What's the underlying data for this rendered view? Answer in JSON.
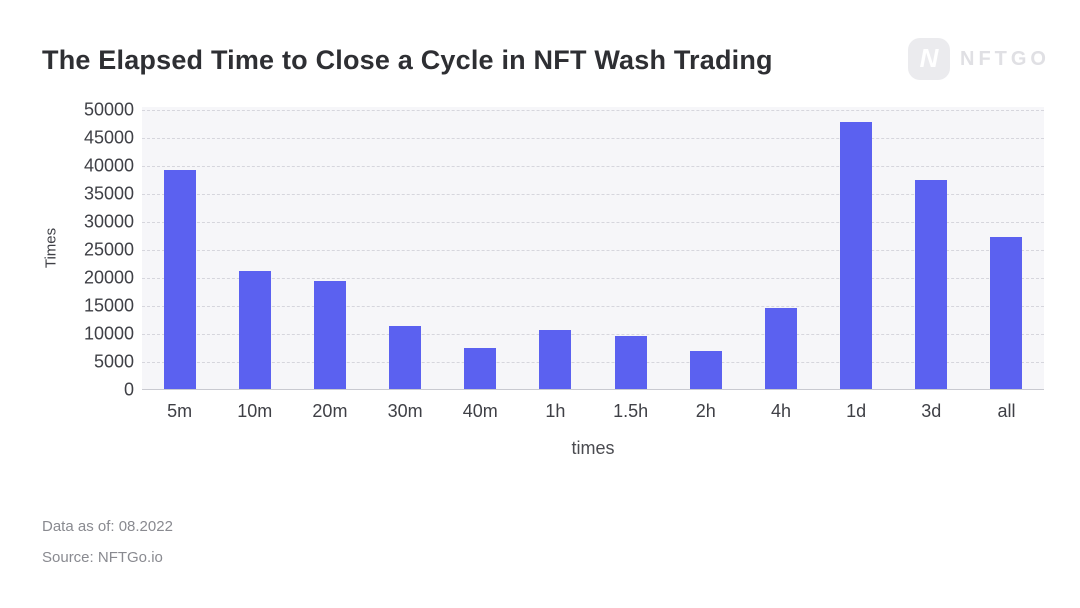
{
  "header": {
    "title": "The Elapsed Time to Close a Cycle in NFT Wash Trading",
    "logo": {
      "mark": "N",
      "text": "NFTGO"
    }
  },
  "chart_data": {
    "type": "bar",
    "title": "The Elapsed Time to Close a Cycle in NFT Wash Trading",
    "categories": [
      "5m",
      "10m",
      "20m",
      "30m",
      "40m",
      "1h",
      "1.5h",
      "2h",
      "4h",
      "1d",
      "3d",
      "all"
    ],
    "values": [
      39100,
      21000,
      19300,
      11300,
      7400,
      10500,
      9400,
      6700,
      14400,
      47700,
      37300,
      27200
    ],
    "xlabel": "times",
    "ylabel": "Times",
    "ylim": [
      0,
      50000
    ],
    "yticks": [
      "50000",
      "45000",
      "40000",
      "35000",
      "30000",
      "25000",
      "20000",
      "15000",
      "10000",
      "5000",
      "0"
    ],
    "grid": true,
    "legend": false,
    "bar_color": "#5b61f0",
    "plot_bg_color": "#f6f6f9",
    "gridline_color": "#d6d6dd"
  },
  "footer": {
    "data_as_of": "Data as of: 08.2022",
    "source": "Source: NFTGo.io"
  }
}
